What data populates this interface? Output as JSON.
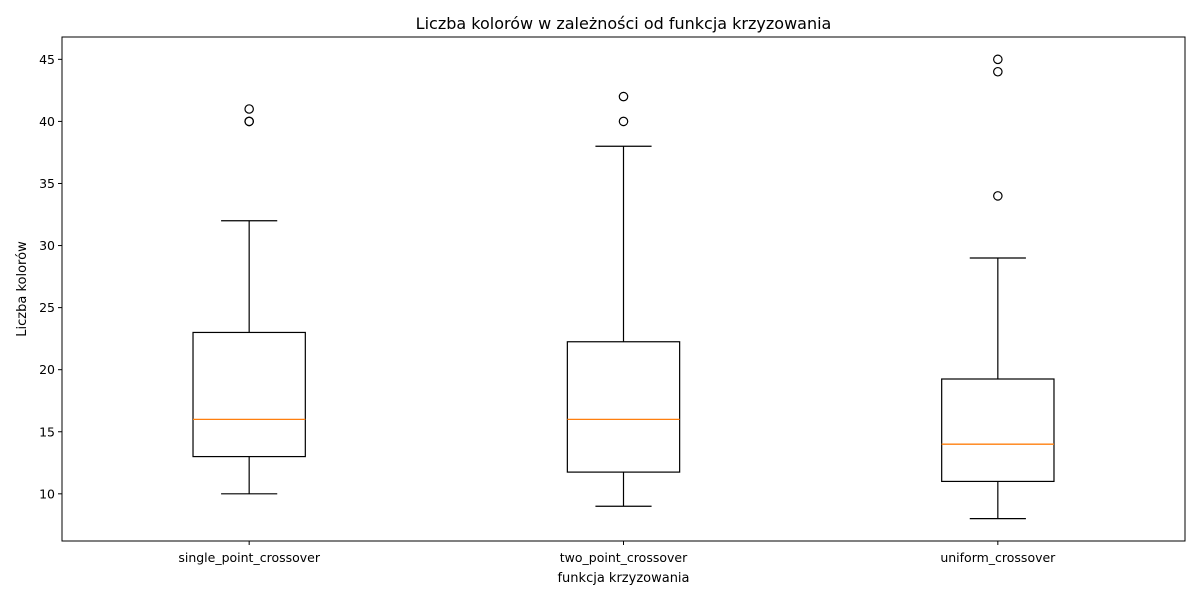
{
  "chart_data": {
    "type": "boxplot",
    "title": "Liczba kolorów w zależności od funkcja krzyzowania",
    "xlabel": "funkcja krzyzowania",
    "ylabel": "Liczba kolorów",
    "ylim": [
      6.2,
      46.8
    ],
    "yticks": [
      10,
      15,
      20,
      25,
      30,
      35,
      40,
      45
    ],
    "grid": false,
    "categories": [
      "single_point_crossover",
      "two_point_crossover",
      "uniform_crossover"
    ],
    "boxes": [
      {
        "category": "single_point_crossover",
        "whisker_low": 10,
        "q1": 13,
        "median": 16,
        "q3": 23,
        "whisker_high": 32,
        "outliers": [
          40,
          40,
          41
        ]
      },
      {
        "category": "two_point_crossover",
        "whisker_low": 9,
        "q1": 11.75,
        "median": 16,
        "q3": 22.25,
        "whisker_high": 38,
        "outliers": [
          40,
          42
        ]
      },
      {
        "category": "uniform_crossover",
        "whisker_low": 8,
        "q1": 11,
        "median": 14,
        "q3": 19.25,
        "whisker_high": 29,
        "outliers": [
          34,
          44,
          45
        ]
      }
    ],
    "colors": {
      "box": "#000000",
      "median": "#ff7f0e",
      "outlier": "#000000"
    }
  }
}
